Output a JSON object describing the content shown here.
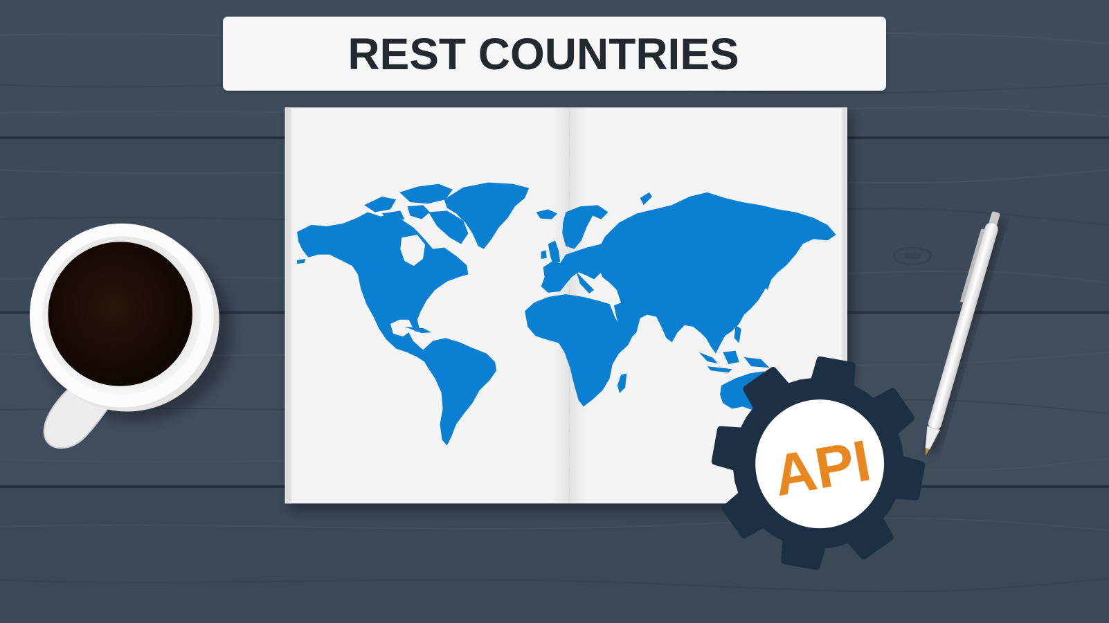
{
  "title": "REST COUNTRIES",
  "badge": {
    "label": "API",
    "icon": "gear-icon"
  },
  "icons": {
    "cup": "coffee-cup-icon",
    "pen": "pen-icon",
    "map": "world-map-icon",
    "notebook": "notebook-icon"
  },
  "colors": {
    "table": "#3e4b5b",
    "table_seam": "#28323e",
    "banner": "#f7f7f7",
    "title_text": "#24292f",
    "page": "#f4f4f4",
    "map": "#0b80d2",
    "gear": "#1c2f43",
    "badge_circle": "#ffffff",
    "badge_text": "#e8861f",
    "coffee": "#1a0a05",
    "pen_tip": "#c9962c"
  }
}
